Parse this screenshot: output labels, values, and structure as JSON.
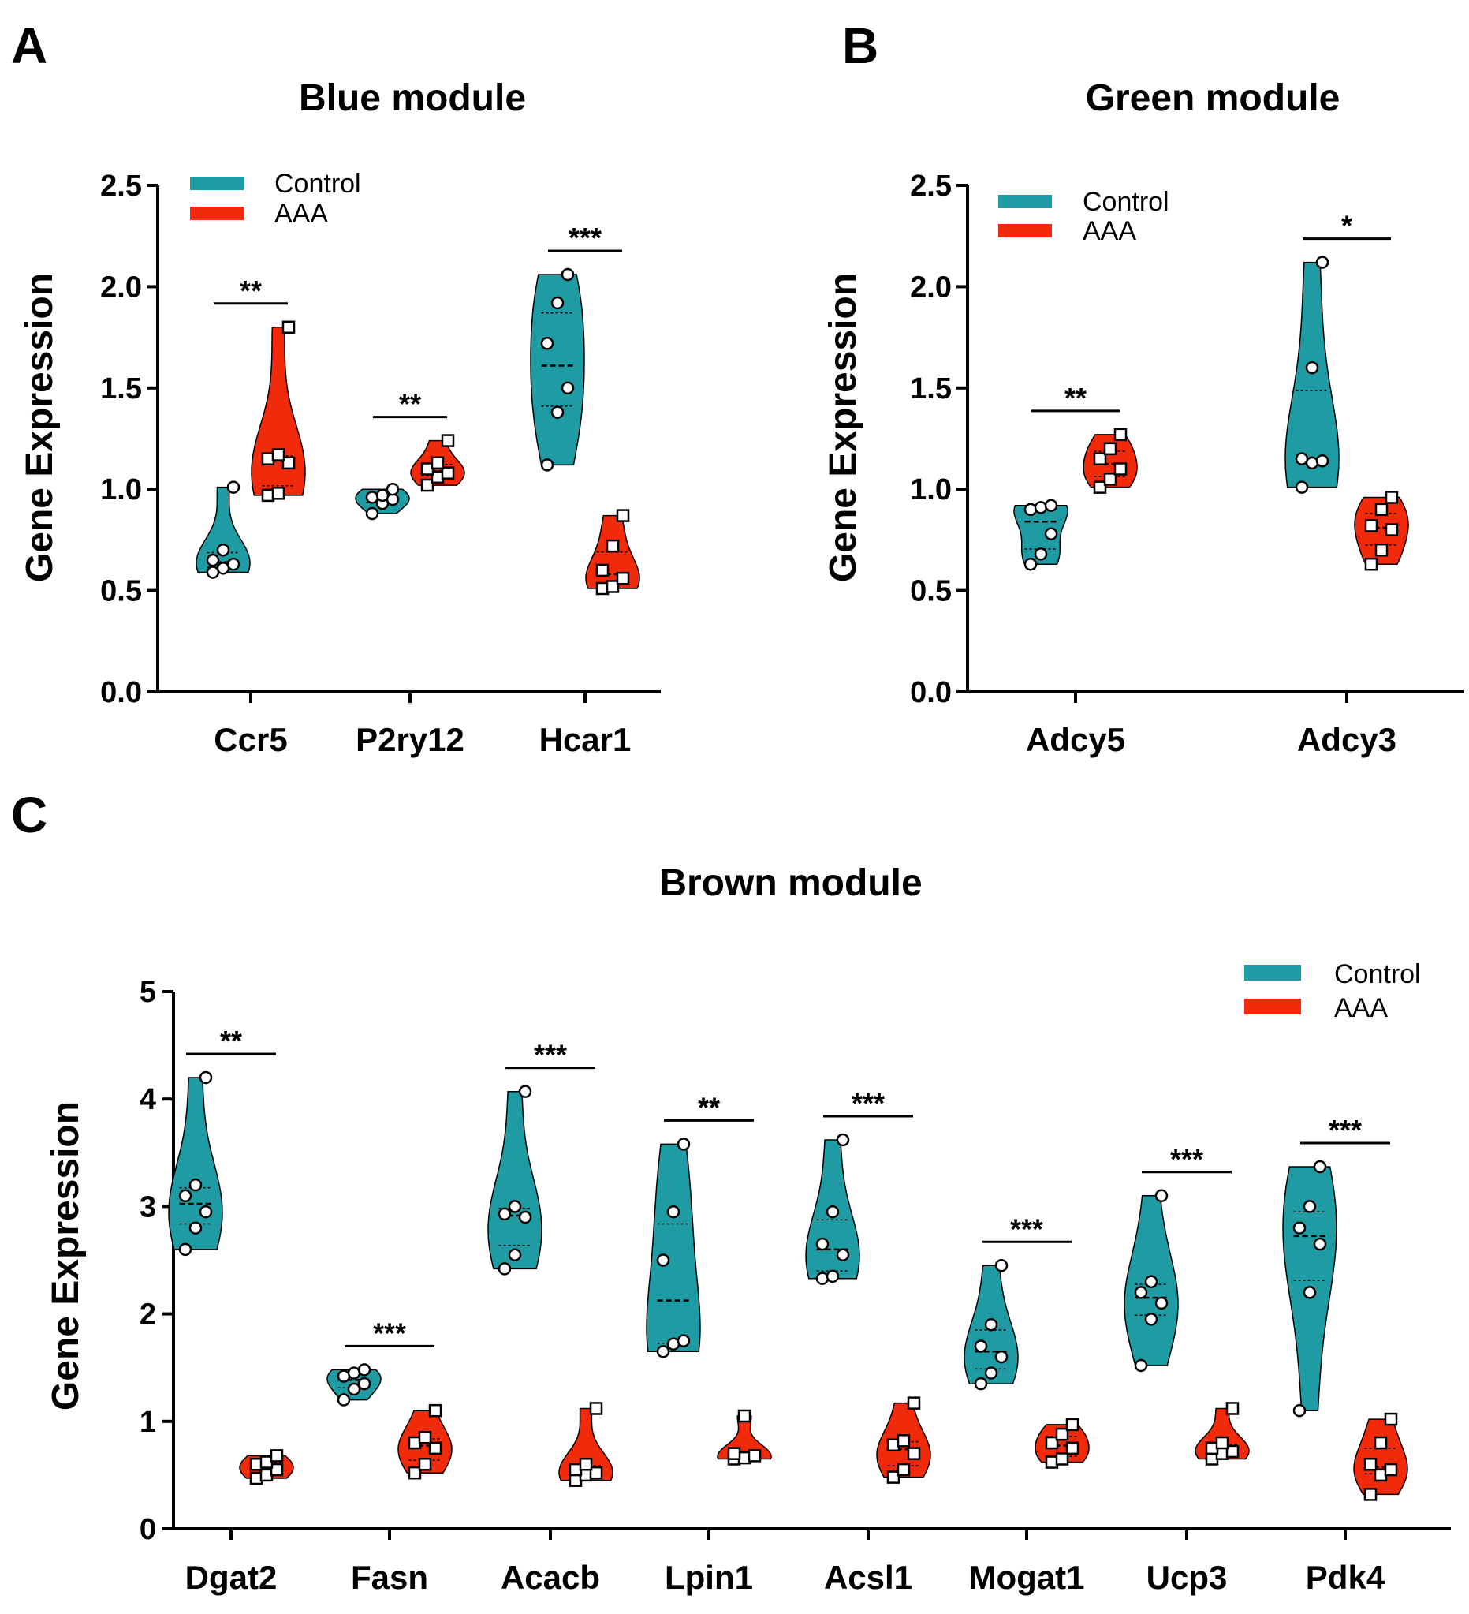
{
  "colors": {
    "control": "#1f9ba3",
    "aaa": "#f22a0c",
    "axis": "#000000"
  },
  "chart_data": [
    {
      "panel": "A",
      "type": "violin",
      "title": "Blue module",
      "ylabel": "Gene Expression",
      "xlabel": "",
      "ylim": [
        0,
        2.5
      ],
      "yticks": [
        "0.0",
        "0.5",
        "1.0",
        "1.5",
        "2.0",
        "2.5"
      ],
      "categories": [
        "Ccr5",
        "P2ry12",
        "Hcar1"
      ],
      "legend": {
        "position": "top-left",
        "entries": [
          "Control",
          "AAA"
        ]
      },
      "series": [
        {
          "name": "Control",
          "marker": "circle",
          "points": [
            [
              0.59,
              0.61,
              0.63,
              0.65,
              0.7,
              1.01
            ],
            [
              0.88,
              0.93,
              0.95,
              0.96,
              0.97,
              1.0
            ],
            [
              1.12,
              1.38,
              1.5,
              1.72,
              1.92,
              2.06
            ]
          ]
        },
        {
          "name": "AAA",
          "marker": "square",
          "points": [
            [
              0.97,
              0.98,
              1.13,
              1.15,
              1.17,
              1.8
            ],
            [
              1.02,
              1.06,
              1.08,
              1.1,
              1.13,
              1.24
            ],
            [
              0.51,
              0.52,
              0.56,
              0.6,
              0.72,
              0.87
            ]
          ]
        }
      ],
      "significance": [
        "**",
        "**",
        "***"
      ]
    },
    {
      "panel": "B",
      "type": "violin",
      "title": "Green module",
      "ylabel": "Gene Expression",
      "xlabel": "",
      "ylim": [
        0,
        2.5
      ],
      "yticks": [
        "0.0",
        "0.5",
        "1.0",
        "1.5",
        "2.0",
        "2.5"
      ],
      "categories": [
        "Adcy5",
        "Adcy3"
      ],
      "legend": {
        "position": "top-left",
        "entries": [
          "Control",
          "AAA"
        ]
      },
      "series": [
        {
          "name": "Control",
          "marker": "circle",
          "points": [
            [
              0.63,
              0.68,
              0.78,
              0.9,
              0.91,
              0.92
            ],
            [
              1.01,
              1.13,
              1.14,
              1.15,
              1.6,
              2.12
            ]
          ]
        },
        {
          "name": "AAA",
          "marker": "square",
          "points": [
            [
              1.01,
              1.05,
              1.1,
              1.15,
              1.2,
              1.27
            ],
            [
              0.63,
              0.7,
              0.8,
              0.82,
              0.9,
              0.96
            ]
          ]
        }
      ],
      "significance": [
        "**",
        "*"
      ]
    },
    {
      "panel": "C",
      "type": "violin",
      "title": "Brown module",
      "ylabel": "Gene Expression",
      "xlabel": "",
      "ylim": [
        0,
        5
      ],
      "yticks": [
        "0",
        "1",
        "2",
        "3",
        "4",
        "5"
      ],
      "categories": [
        "Dgat2",
        "Fasn",
        "Acacb",
        "Lpin1",
        "Acsl1",
        "Mogat1",
        "Ucp3",
        "Pdk4"
      ],
      "legend": {
        "position": "top-right",
        "entries": [
          "Control",
          "AAA"
        ]
      },
      "series": [
        {
          "name": "Control",
          "marker": "circle",
          "points": [
            [
              2.6,
              2.8,
              2.95,
              3.1,
              3.2,
              4.2
            ],
            [
              1.2,
              1.3,
              1.35,
              1.42,
              1.45,
              1.48
            ],
            [
              2.42,
              2.55,
              2.9,
              2.93,
              3.0,
              4.07
            ],
            [
              1.65,
              1.72,
              1.75,
              2.5,
              2.95,
              3.58
            ],
            [
              2.33,
              2.35,
              2.55,
              2.65,
              2.95,
              3.62
            ],
            [
              1.35,
              1.45,
              1.6,
              1.7,
              1.9,
              2.45
            ],
            [
              1.52,
              1.95,
              2.1,
              2.2,
              2.3,
              3.1
            ],
            [
              1.1,
              2.2,
              2.65,
              2.8,
              3.0,
              3.37
            ]
          ]
        },
        {
          "name": "AAA",
          "marker": "square",
          "points": [
            [
              0.47,
              0.5,
              0.55,
              0.6,
              0.62,
              0.68
            ],
            [
              0.52,
              0.6,
              0.75,
              0.8,
              0.85,
              1.1
            ],
            [
              0.45,
              0.5,
              0.52,
              0.55,
              0.6,
              1.12
            ],
            [
              0.65,
              0.66,
              0.68,
              0.7,
              1.05
            ],
            [
              0.48,
              0.55,
              0.7,
              0.78,
              0.82,
              1.17
            ],
            [
              0.62,
              0.65,
              0.75,
              0.8,
              0.88,
              0.97
            ],
            [
              0.65,
              0.7,
              0.72,
              0.75,
              0.8,
              1.12
            ],
            [
              0.32,
              0.5,
              0.55,
              0.6,
              0.8,
              1.02
            ]
          ]
        }
      ],
      "significance": [
        "**",
        "***",
        "***",
        "**",
        "***",
        "***",
        "***",
        "***"
      ]
    }
  ]
}
